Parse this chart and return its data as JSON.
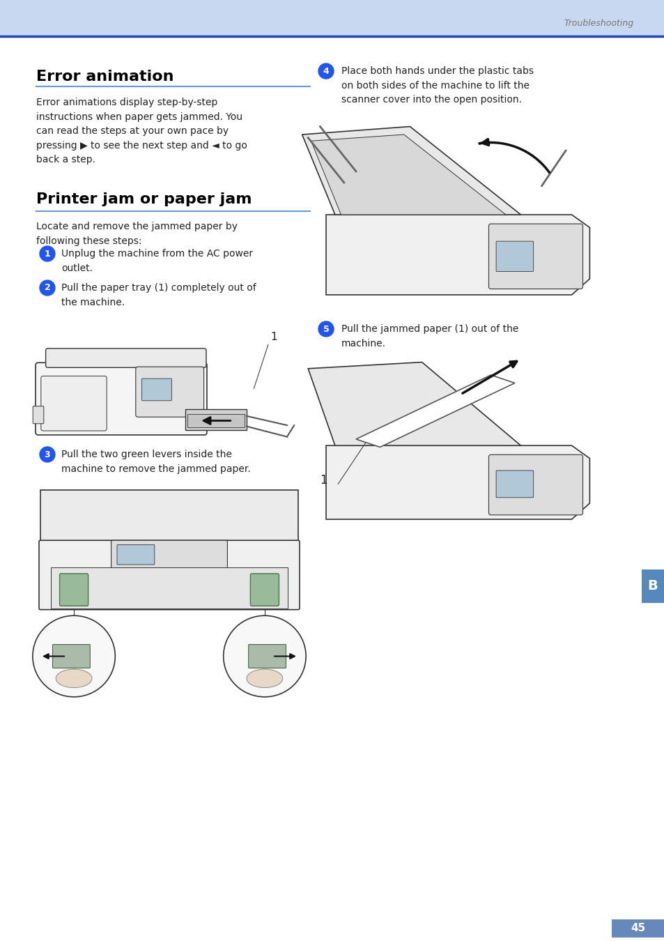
{
  "page_bg": "#ffffff",
  "header_bg": "#c8d8f0",
  "header_line_color": "#2244bb",
  "page_number": "45",
  "page_number_bg": "#6688bb",
  "header_text": "Troubleshooting",
  "header_text_color": "#777777",
  "section1_title": "Error animation",
  "section2_title": "Printer jam or paper jam",
  "blue_line_color": "#6699dd",
  "step_circle_color": "#2255ee",
  "step1_text": "Unplug the machine from the AC power\noutlet.",
  "step2_text": "Pull the paper tray (1) completely out of\nthe machine.",
  "step3_text": "Pull the two green levers inside the\nmachine to remove the jammed paper.",
  "step4_text": "Place both hands under the plastic tabs\non both sides of the machine to lift the\nscanner cover into the open position.",
  "step5_text": "Pull the jammed paper (1) out of the\nmachine.",
  "section1_body": "Error animations display step-by-step\ninstructions when paper gets jammed. You\ncan read the steps at your own pace by\npressing ▶ to see the next step and ◄ to go\nback a step.",
  "section2_intro": "Locate and remove the jammed paper by\nfollowing these steps:",
  "sidebar_color": "#5588bb",
  "sidebar_letter": "B",
  "line_color": "#333333",
  "body_color": "#f0f0f0",
  "body_fill": "#e8e8e8"
}
